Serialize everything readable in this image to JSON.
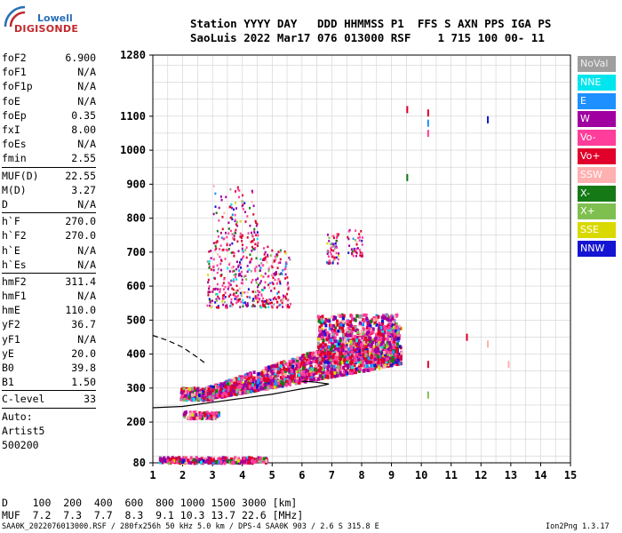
{
  "logo": {
    "line1": "Lowell",
    "line2": "DIGISONDE"
  },
  "header": {
    "line1": "Station YYYY DAY   DDD HHMMSS P1  FFS S AXN PPS IGA PS",
    "line2": "SaoLuis 2022 Mar17 076 013000 RSF    1 715 100 00- 11"
  },
  "params": [
    {
      "name": "foF2",
      "value": "6.900"
    },
    {
      "name": "foF1",
      "value": "N/A"
    },
    {
      "name": "foF1p",
      "value": "N/A"
    },
    {
      "name": "foE",
      "value": "N/A"
    },
    {
      "name": "foEp",
      "value": "0.35"
    },
    {
      "name": "fxI",
      "value": "8.00"
    },
    {
      "name": "foEs",
      "value": "N/A"
    },
    {
      "name": "fmin",
      "value": "2.55"
    },
    {
      "sep": true
    },
    {
      "name": "MUF(D)",
      "value": "22.55"
    },
    {
      "name": "M(D)",
      "value": "3.27"
    },
    {
      "name": "D",
      "value": "N/A"
    },
    {
      "sep": true
    },
    {
      "name": "h`F",
      "value": "270.0"
    },
    {
      "name": "h`F2",
      "value": "270.0"
    },
    {
      "name": "h`E",
      "value": "N/A"
    },
    {
      "name": "h`Es",
      "value": "N/A"
    },
    {
      "sep": true
    },
    {
      "name": "hmF2",
      "value": "311.4"
    },
    {
      "name": "hmF1",
      "value": "N/A"
    },
    {
      "name": "hmE",
      "value": "110.0"
    },
    {
      "name": "yF2",
      "value": "36.7"
    },
    {
      "name": "yF1",
      "value": "N/A"
    },
    {
      "name": "yE",
      "value": "20.0"
    },
    {
      "name": "B0",
      "value": "39.8"
    },
    {
      "name": "B1",
      "value": "1.50"
    },
    {
      "sep": true
    },
    {
      "name": "C-level",
      "value": "33"
    },
    {
      "sep": true
    },
    {
      "name": "Auto:",
      "value": ""
    },
    {
      "name": "Artist5",
      "value": ""
    },
    {
      "name": "500200",
      "value": ""
    }
  ],
  "legend": [
    {
      "label": "NoVal",
      "color": "#9e9e9e"
    },
    {
      "label": "NNE",
      "color": "#00e5ee"
    },
    {
      "label": "E",
      "color": "#1e90ff"
    },
    {
      "label": "W",
      "color": "#a0009f"
    },
    {
      "label": "Vo-",
      "color": "#ff3d9a"
    },
    {
      "label": "Vo+",
      "color": "#e0002a"
    },
    {
      "label": "SSW",
      "color": "#ffb0b0"
    },
    {
      "label": "X-",
      "color": "#157a15"
    },
    {
      "label": "X+",
      "color": "#7fbf4f"
    },
    {
      "label": "SSE",
      "color": "#d9d900"
    },
    {
      "label": "NNW",
      "color": "#1414d2"
    }
  ],
  "footer": {
    "line1": "D    100  200  400  600  800 1000 1500 3000 [km]",
    "line2": "MUF  7.2  7.3  7.7  8.3  9.1 10.3 13.7 22.6 [MHz]",
    "bottom_left": "SAA0K_2022076013000.RSF / 280fx256h 50 kHz 5.0 km / DPS-4 SAA0K 903 / 2.6 S 315.8 E",
    "bottom_right": "Ion2Png 1.3.17"
  },
  "chart_data": {
    "type": "scatter",
    "xlim": [
      1,
      15
    ],
    "ylim": [
      80,
      1280
    ],
    "x_ticks": [
      1,
      2,
      3,
      4,
      5,
      6,
      7,
      8,
      9,
      10,
      11,
      12,
      13,
      14,
      15
    ],
    "y_ticks": [
      80,
      200,
      300,
      400,
      500,
      600,
      700,
      800,
      900,
      1000,
      1100,
      1280
    ],
    "grid": true,
    "traces": [
      {
        "name": "O-trace",
        "x": [
          1.0,
          2.0,
          3.0,
          4.0,
          5.0,
          5.5,
          6.0,
          6.5,
          6.9,
          6.4,
          6.0
        ],
        "y": [
          242,
          246,
          258,
          270,
          282,
          290,
          298,
          304,
          312,
          318,
          320
        ]
      },
      {
        "name": "dashed",
        "x": [
          1.0,
          1.5,
          2.0,
          2.5,
          2.8
        ],
        "y": [
          455,
          440,
          420,
          390,
          370
        ]
      }
    ]
  }
}
